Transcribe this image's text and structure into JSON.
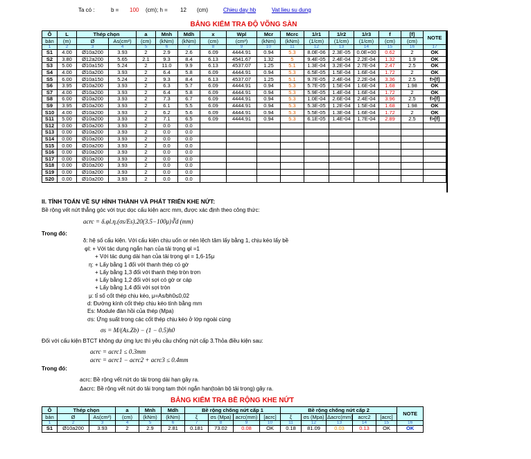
{
  "header": {
    "ta_co": "Ta có :",
    "b_label": "b =",
    "b": "100",
    "h_label": "(cm); h =",
    "h": "12",
    "unit": "(cm)",
    "link1": "Chieu day hb",
    "link2": "Vat lieu su dung"
  },
  "table1": {
    "title": "BẢNG KIỂM TRA ĐỘ VÕNG SÀN",
    "head_top": [
      "Ô",
      "L",
      "Thép chọn",
      "a",
      "Mnh",
      "Mdh",
      "x",
      "Wpl",
      "Mcr",
      "Mcrc",
      "1/r1",
      "1/r2",
      "1/r3",
      "f",
      "[f]",
      "NOTE"
    ],
    "head_bottom": [
      "bản",
      "(m)",
      "Ø",
      "As(cm²)",
      "(cm)",
      "(kNm)",
      "(kNm)",
      "(cm)",
      "(cm³)",
      "(kNm)",
      "(kNm)",
      "(1/cm)",
      "(1/cm)",
      "(1/cm)",
      "(cm)",
      "(cm)"
    ],
    "index": [
      "1",
      "2",
      "3",
      "4",
      "5",
      "6",
      "7",
      "8",
      "9",
      "10",
      "11",
      "12",
      "13",
      "14",
      "15",
      "16",
      "17"
    ],
    "rows": [
      [
        "S1",
        "4.00",
        "Ø10a200",
        "3.93",
        "2",
        "2.9",
        "2.6",
        "6.09",
        "4444.91",
        "0.94",
        "5.3",
        "8.0E-06",
        "2.3E-05",
        "0.0E+00",
        "0.62",
        "2",
        "OK"
      ],
      [
        "S2",
        "3.80",
        "Ø12a200",
        "5.65",
        "2.1",
        "9.3",
        "8.4",
        "6.13",
        "4541.67",
        "1.32",
        "5",
        "9.4E-05",
        "2.4E-04",
        "2.2E-04",
        "1.32",
        "1.9",
        "OK"
      ],
      [
        "S3",
        "5.00",
        "Ø10a150",
        "5.24",
        "2",
        "11.0",
        "9.9",
        "6.13",
        "4537.07",
        "1.25",
        "5.1",
        "1.3E-04",
        "3.2E-04",
        "2.7E-04",
        "2.47",
        "2.5",
        "OK"
      ],
      [
        "S4",
        "4.00",
        "Ø10a200",
        "3.93",
        "2",
        "6.4",
        "5.8",
        "6.09",
        "4444.91",
        "0.94",
        "5.3",
        "6.5E-05",
        "1.5E-04",
        "1.6E-04",
        "1.72",
        "2",
        "OK"
      ],
      [
        "S5",
        "6.00",
        "Ø10a150",
        "5.24",
        "2",
        "9.3",
        "8.4",
        "6.13",
        "4537.07",
        "1.25",
        "5.1",
        "9.7E-05",
        "2.4E-04",
        "2.2E-04",
        "3.36",
        "2.5",
        "f>[f]"
      ],
      [
        "S6",
        "3.95",
        "Ø10a200",
        "3.93",
        "2",
        "6.3",
        "5.7",
        "6.09",
        "4444.91",
        "0.94",
        "5.3",
        "5.7E-05",
        "1.5E-04",
        "1.6E-04",
        "1.68",
        "1.98",
        "OK"
      ],
      [
        "S7",
        "4.00",
        "Ø10a200",
        "3.93",
        "2",
        "6.4",
        "5.8",
        "6.09",
        "4444.91",
        "0.94",
        "5.3",
        "5.9E-05",
        "1.4E-04",
        "1.6E-04",
        "1.72",
        "2",
        "OK"
      ],
      [
        "S8",
        "6.00",
        "Ø10a200",
        "3.93",
        "2",
        "7.3",
        "6.7",
        "6.09",
        "4444.91",
        "0.94",
        "5.3",
        "1.0E-04",
        "2.6E-04",
        "2.4E-04",
        "3.96",
        "2.5",
        "f>[f]"
      ],
      [
        "S9",
        "3.95",
        "Ø10a200",
        "3.93",
        "2",
        "6.1",
        "5.5",
        "6.09",
        "4444.91",
        "0.94",
        "5.3",
        "5.3E-05",
        "1.2E-04",
        "1.5E-04",
        "1.68",
        "1.98",
        "OK"
      ],
      [
        "S10",
        "4.00",
        "Ø10a200",
        "3.93",
        "2",
        "6.2",
        "5.6",
        "6.09",
        "4444.91",
        "0.94",
        "5.3",
        "5.5E-05",
        "1.3E-04",
        "1.6E-04",
        "1.72",
        "2",
        "OK"
      ],
      [
        "S11",
        "5.00",
        "Ø10a200",
        "3.93",
        "2",
        "7.1",
        "6.5",
        "6.09",
        "4444.91",
        "0.94",
        "5.3",
        "6.1E-05",
        "1.4E-04",
        "1.7E-04",
        "2.89",
        "2.5",
        "f>[f]"
      ],
      [
        "S12",
        "0.00",
        "Ø10a200",
        "3.93",
        "2",
        "0.0",
        "0.0"
      ],
      [
        "S13",
        "0.00",
        "Ø10a200",
        "3.93",
        "2",
        "0.0",
        "0.0"
      ],
      [
        "S14",
        "0.00",
        "Ø10a200",
        "3.93",
        "2",
        "0.0",
        "0.0"
      ],
      [
        "S15",
        "0.00",
        "Ø10a200",
        "3.93",
        "2",
        "0.0",
        "0.0"
      ],
      [
        "S16",
        "0.00",
        "Ø10a200",
        "3.93",
        "2",
        "0.0",
        "0.0"
      ],
      [
        "S17",
        "0.00",
        "Ø10a200",
        "3.93",
        "2",
        "0.0",
        "0.0"
      ],
      [
        "S18",
        "0.00",
        "Ø10a200",
        "3.93",
        "2",
        "0.0",
        "0.0"
      ],
      [
        "S19",
        "0.00",
        "Ø10a200",
        "3.93",
        "2",
        "0.0",
        "0.0"
      ],
      [
        "S20",
        "0.00",
        "Ø10a200",
        "3.93",
        "2",
        "0.0",
        "0.0"
      ]
    ]
  },
  "section2": {
    "heading": "II. TÍNH TOÁN VỀ SỰ HÌNH THÀNH VÀ PHÁT TRIỂN KHE NỨT:",
    "lines": [
      "Bề rộng vết nứt thẳng góc với trục dọc cấu kiện acrc mm, được xác định theo công thức:",
      "acrc = δ.φl.η.(σs/Es).20(3.5−100μ)∛d (mm)",
      "Trong đó:",
      "δ: hệ số cấu kiện. Với cấu kiện chịu uốn or nén lệch tâm lấy bằng 1, chịu kéo lấy bề",
      "φl: + Với tác dụng ngắn hạn của tải trọng φl =1",
      "+ Với tác dụng dài hạn của tải trọng φl = 1,6-15μ",
      "η: + Lấy bằng 1 đối với thanh thép có gờ",
      "+ Lấy bằng 1,3 đối với thanh thép tròn trơn",
      "+ Lấy bằng 1,2 đối với sợi có gờ or cáp",
      "+ Lấy bằng 1,4 đối với sợi tròn",
      "μ: tỉ số cốt thép chịu kéo, μ=As/bh0≤0,02",
      "d: Đường kính cốt thép chịu kéo tính bằng mm",
      "Es: Module đàn hồi của thép (Mpa)",
      "σs: Ứng suất trong các cốt thép chịu kéo ở lớp ngoài cùng",
      "σs = M/(As.Zb) − (1 − 0.5)h0",
      "Đối với cấu kiện BTCT không dự ứng lực thì yêu cầu chống nứt cấp 3.Thỏa điều kiện sau:",
      "acrc = acrc1 ≤ 0.3mm",
      "acrc = acrc1 − acrc2 + acrc3 ≤ 0.4mm",
      "Trong đó:",
      "acrc: Bề rộng vết nứt do tải trọng dài hạn gây ra.",
      "Δacrc: Bề rộng vết nứt do tải trọng tạm thời ngắn hạn(toàn bộ tải trọng) gây ra."
    ]
  },
  "table2": {
    "title": "BẢNG KIỂM TRA BỀ RỘNG KHE NỨT",
    "head_top": [
      "Ô",
      "Thép chọn",
      "a",
      "Mnh",
      "Mdh",
      "Bề rộng chống nứt cấp 1",
      "Bề rộng chống nứt cấp 2",
      "NOTE"
    ],
    "head_bottom": [
      "bản",
      "Ø",
      "As(cm²)",
      "(cm)",
      "(kNm)",
      "(kNm)",
      "ξ",
      "σs (Mpa)",
      "acrc(mm)",
      "[acrc]",
      "ξ",
      "σs (Mpa)",
      "Δacrc(mm)",
      "acrc2",
      "[acrc]"
    ],
    "index": [
      "1",
      "2",
      "3",
      "4",
      "5",
      "6",
      "7",
      "8",
      "9",
      "10",
      "11",
      "12",
      "13",
      "14",
      "15",
      "16"
    ],
    "rows": [
      [
        "S1",
        "Ø10a200",
        "3.93",
        "2",
        "2.9",
        "2.81",
        "0.181",
        "73.02",
        "0.08",
        "OK",
        "0.18",
        "81.09",
        "0.03",
        "0.13",
        "OK",
        "OK"
      ]
    ]
  }
}
